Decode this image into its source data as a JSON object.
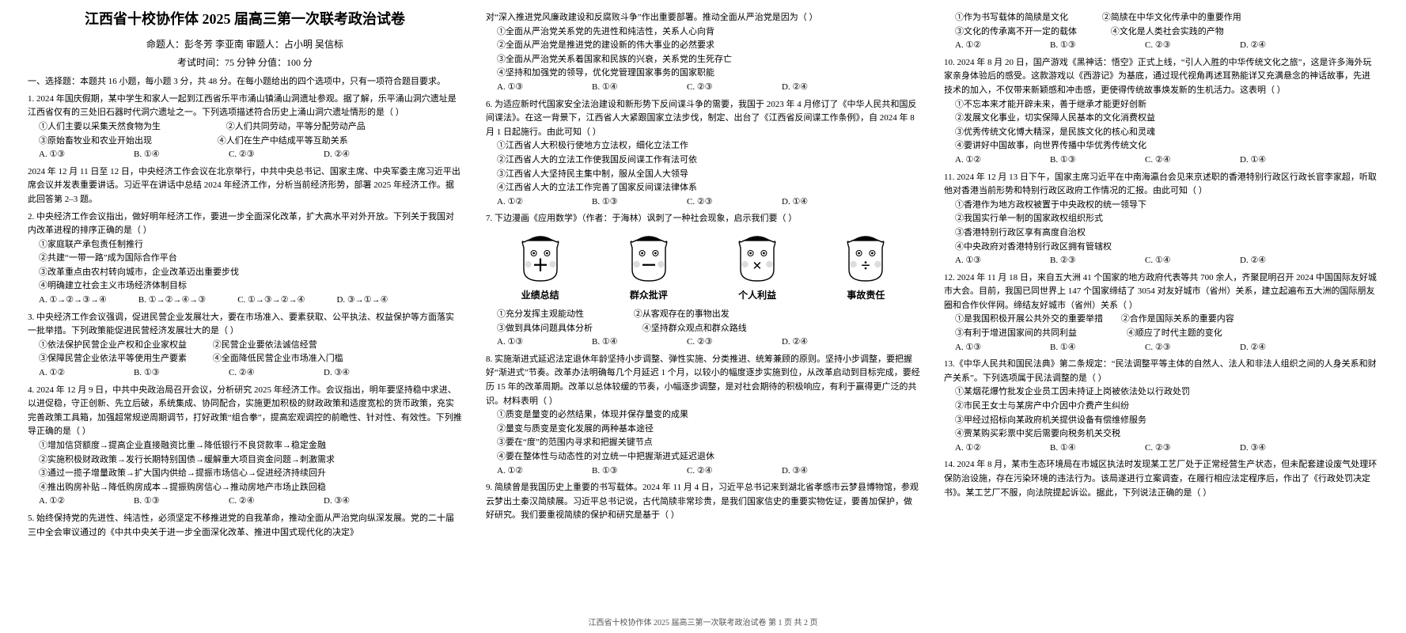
{
  "header": {
    "title": "江西省十校协作体 2025 届高三第一次联考政治试卷",
    "authors_line": "命题人：彭冬芳  李亚南    审题人：占小明  吴信标",
    "time_line": "考试时间：75 分钟    分值：100 分"
  },
  "section1_head": "一、选择题：本题共 16 小题，每小题 3 分，共 48 分。在每小题给出的四个选项中，只有一项符合题目要求。",
  "q1": {
    "stem": "1. 2024 年国庆假期，某中学生和家人一起到江西省乐平市涌山镇涌山洞遗址参观。据了解，乐平涌山洞穴遗址是江西省仅有的三处旧石器时代洞穴遗址之一。下列选项描述符合历史上涌山洞穴遗址情形的是（    ）",
    "o1": "①人们主要以采集天然食物为生",
    "o2": "②人们共同劳动，平等分配劳动产品",
    "o3": "③原始畜牧业和农业开始出现",
    "o4": "④人们在生产中结成平等互助关系",
    "cA": "A. ①③",
    "cB": "B. ①④",
    "cC": "C. ②③",
    "cD": "D. ②④"
  },
  "q12_intro": "2024 年 12 月 11 日至 12 日，中央经济工作会议在北京举行，中共中央总书记、国家主席、中央军委主席习近平出席会议并发表重要讲话。习近平在讲话中总结 2024 年经济工作，分析当前经济形势，部署 2025 年经济工作。据此回答第 2–3 题。",
  "q2": {
    "stem": "2. 中央经济工作会议指出，做好明年经济工作，要进一步全面深化改革，扩大高水平对外开放。下列关于我国对内改革进程的排序正确的是（    ）",
    "o1": "①家庭联产承包责任制推行",
    "o2": "②共建“一带一路”成为国际合作平台",
    "o3": "③改革重点由农村转向城市，企业改革迈出重要步伐",
    "o4": "④明确建立社会主义市场经济体制目标",
    "cA": "A. ①→②→③→④",
    "cB": "B. ①→②→④→③",
    "cC": "C. ①→③→②→④",
    "cD": "D. ③→①→④"
  },
  "q3": {
    "stem": "3. 中央经济工作会议强调，促进民营企业发展壮大，要在市场准入、要素获取、公平执法、权益保护等方面落实一批举措。下列政策能促进民营经济发展壮大的是（    ）",
    "o1": "①依法保护民营企业产权和企业家权益",
    "o2": "②民营企业要依法诚信经营",
    "o3": "③保障民营企业依法平等使用生产要素",
    "o4": "④全面降低民营企业市场准入门槛",
    "cA": "A. ①②",
    "cB": "B. ①③",
    "cC": "C. ②④",
    "cD": "D. ③④"
  },
  "q4": {
    "stem": "4. 2024 年 12 月 9 日，中共中央政治局召开会议，分析研究 2025 年经济工作。会议指出，明年要坚持稳中求进、以进促稳，守正创新、先立后破，系统集成、协同配合，实施更加积极的财政政策和适度宽松的货币政策，充实完善政策工具箱，加强超常规逆周期调节，打好政策“组合拳”，提高宏观调控的前瞻性、针对性、有效性。下列推导正确的是（    ）",
    "o1": "①增加信贷额度→提高企业直接融资比重→降低银行不良贷款率→稳定金融",
    "o2": "②实施积极财政政策→发行长期特别国债→缓解重大项目资金问题→刺激需求",
    "o3": "③通过一揽子增量政策→扩大国内供给→提振市场信心→促进经济持续回升",
    "o4": "④推出购房补贴→降低购房成本→提振购房信心→推动房地产市场止跌回稳",
    "cA": "A. ①②",
    "cB": "B. ①③",
    "cC": "C. ②④",
    "cD": "D. ③④"
  },
  "q5": {
    "stem": "5. 始终保持党的先进性、纯洁性，必须坚定不移推进党的自我革命，推动全面从严治党向纵深发展。党的二十届三中全会审议通过的《中共中央关于进一步全面深化改革、推进中国式现代化的决定》"
  },
  "q5b": {
    "cont": "对“深入推进党风廉政建设和反腐败斗争”作出重要部署。推动全面从严治党是因为（    ）",
    "o1": "①全面从严治党关系党的先进性和纯洁性，关系人心向背",
    "o2": "②全面从严治党是推进党的建设新的伟大事业的必然要求",
    "o3": "③全面从严治党关系着国家和民族的兴衰，关系党的生死存亡",
    "o4": "④坚持和加强党的领导，优化党管理国家事务的国家职能",
    "cA": "A. ①③",
    "cB": "B. ①④",
    "cC": "C. ②③",
    "cD": "D. ②④"
  },
  "q6": {
    "stem": "6. 为适应新时代国家安全法治建设和新形势下反间谍斗争的需要，我国于 2023 年 4 月修订了《中华人民共和国反间谍法》。在这一背景下，江西省人大紧跟国家立法步伐，制定、出台了《江西省反间谍工作条例》，自 2024 年 8 月 1 日起施行。由此可知（    ）",
    "o1": "①江西省人大积极行使地方立法权，细化立法工作",
    "o2": "②江西省人大的立法工作使我国反间谍工作有法可依",
    "o3": "③江西省人大坚持民主集中制，服从全国人大领导",
    "o4": "④江西省人大的立法工作完善了国家反间谍法律体系",
    "cA": "A. ①②",
    "cB": "B. ①③",
    "cC": "C. ②③",
    "cD": "D. ①④"
  },
  "q7": {
    "stem": "7. 下边漫画《应用数学》（作者：于海林）讽刺了一种社会现象，启示我们要（    ）",
    "faces": [
      {
        "symbol": "＋",
        "label": "业绩总结"
      },
      {
        "symbol": "－",
        "label": "群众批评"
      },
      {
        "symbol": "×",
        "label": "个人利益"
      },
      {
        "symbol": "÷",
        "label": "事故责任"
      }
    ],
    "o1": "①充分发挥主观能动性",
    "o2": "②从客观存在的事物出发",
    "o3": "③做到具体问题具体分析",
    "o4": "④坚持群众观点和群众路线",
    "cA": "A. ①③",
    "cB": "B. ①④",
    "cC": "C. ②③",
    "cD": "D. ②④"
  },
  "q8": {
    "stem": "8. 实施渐进式延迟法定退休年龄坚持小步调整、弹性实施、分类推进、统筹兼顾的原则。坚持小步调整，要把握好“渐进式”节奏。改革办法明确每几个月延迟 1 个月，以较小的幅度逐步实施到位，从改革启动到目标完成，要经历 15 年的改革周期。改革以总体较缓的节奏，小幅逐步调整，是对社会期待的积极响应，有利于赢得更广泛的共识。材料表明（    ）",
    "o1": "①质变是量变的必然结果，体现并保存量变的成果",
    "o2": "②量变与质变是变化发展的两种基本途径",
    "o3": "③要在“度”的范围内寻求和把握关键节点",
    "o4": "④要在整体性与动态性的对立统一中把握渐进式延迟退休",
    "cA": "A. ①②",
    "cB": "B. ①③",
    "cC": "C. ②④",
    "cD": "D. ③④"
  },
  "q9": {
    "stem": "9. 简牍曾是我国历史上重要的书写载体。2024 年 11 月 4 日，习近平总书记来到湖北省孝感市云梦县博物馆，参观云梦出土秦汉简牍展。习近平总书记说，古代简牍非常珍贵，是我们国家信史的重要实物佐证，要善加保护，做好研究。我们要重视简牍的保护和研究是基于（    ）"
  },
  "q9b": {
    "o1": "①作为书写载体的简牍是文化",
    "o2": "②简牍在中华文化传承中的重要作用",
    "o3": "③文化的传承离不开一定的载体",
    "o4": "④文化是人类社会实践的产物",
    "cA": "A. ①②",
    "cB": "B. ①③",
    "cC": "C. ②③",
    "cD": "D. ②④"
  },
  "q10": {
    "stem": "10. 2024 年 8 月 20 日，国产游戏《黑神话：悟空》正式上线，“引人入胜的中华传统文化之旅”，这是许多海外玩家亲身体验后的感受。这款游戏以《西游记》为基底，通过现代视角再述耳熟能详又充满悬念的神话故事，先进技术的加入，不仅带来新颖感和冲击感，更使得传统故事焕发新的生机活力。这表明（    ）",
    "o1": "①不忘本来才能开辟未来，善于继承才能更好创新",
    "o2": "②发展文化事业，切实保障人民基本的文化消费权益",
    "o3": "③优秀传统文化博大精深，是民族文化的核心和灵魂",
    "o4": "④要讲好中国故事，向世界传播中华优秀传统文化",
    "cA": "A. ①②",
    "cB": "B. ①③",
    "cC": "C. ②④",
    "cD": "D. ①④"
  },
  "q11": {
    "stem": "11. 2024 年 12 月 13 日下午，国家主席习近平在中南海瀛台会见来京述职的香港特别行政区行政长官李家超，听取他对香港当前形势和特别行政区政府工作情况的汇报。由此可知（    ）",
    "o1": "①香港作为地方政权被置于中央政权的统一领导下",
    "o2": "②我国实行单一制的国家政权组织形式",
    "o3": "③香港特别行政区享有高度自治权",
    "o4": "④中央政府对香港特别行政区拥有管辖权",
    "cA": "A. ①③",
    "cB": "B. ②③",
    "cC": "C. ①④",
    "cD": "D. ②④"
  },
  "q12": {
    "stem": "12. 2024 年 11 月 18 日，来自五大洲 41 个国家的地方政府代表等共 700 余人，齐聚昆明召开 2024 中国国际友好城市大会。目前，我国已同世界上 147 个国家缔结了 3054 对友好城市（省州）关系，建立起遍布五大洲的国际朋友圈和合作伙伴网。缔结友好城市（省州）关系（    ）",
    "o1": "①是我国积极开展公共外交的重要举措",
    "o2": "②合作是国际关系的重要内容",
    "o3": "③有利于增进国家间的共同利益",
    "o4": "④顺应了时代主题的变化",
    "cA": "A. ①③",
    "cB": "B. ①④",
    "cC": "C. ②③",
    "cD": "D. ②④"
  },
  "q13": {
    "stem": "13.《中华人民共和国民法典》第二条规定：“民法调整平等主体的自然人、法人和非法人组织之间的人身关系和财产关系”。下列选项属于民法调整的是（    ）",
    "o1": "①某烟花爆竹批发企业员工因未持证上岗被依法处以行政处罚",
    "o2": "②市民王女士与某房产中介因中介费产生纠纷",
    "o3": "③甲经过招标向某政府机关提供设备有偿维修服务",
    "o4": "④贾某购买彩票中奖后需要向税务机关交税",
    "cA": "A. ①②",
    "cB": "B. ①④",
    "cC": "C. ②③",
    "cD": "D. ③④"
  },
  "q14": {
    "stem": "14. 2024 年 8 月，某市生态环境局在市城区执法时发现某工艺厂处于正常经营生产状态，但未配套建设废气处理环保防治设施，存在污染环境的违法行为。该局遂进行立案调查，在履行相应法定程序后，作出了《行政处罚决定书》。某工艺厂不服，向法院提起诉讼。据此，下列说法正确的是（    ）"
  },
  "footer": "江西省十校协作体 2025 届高三第一次联考政治试卷  第 1 页  共 2 页"
}
